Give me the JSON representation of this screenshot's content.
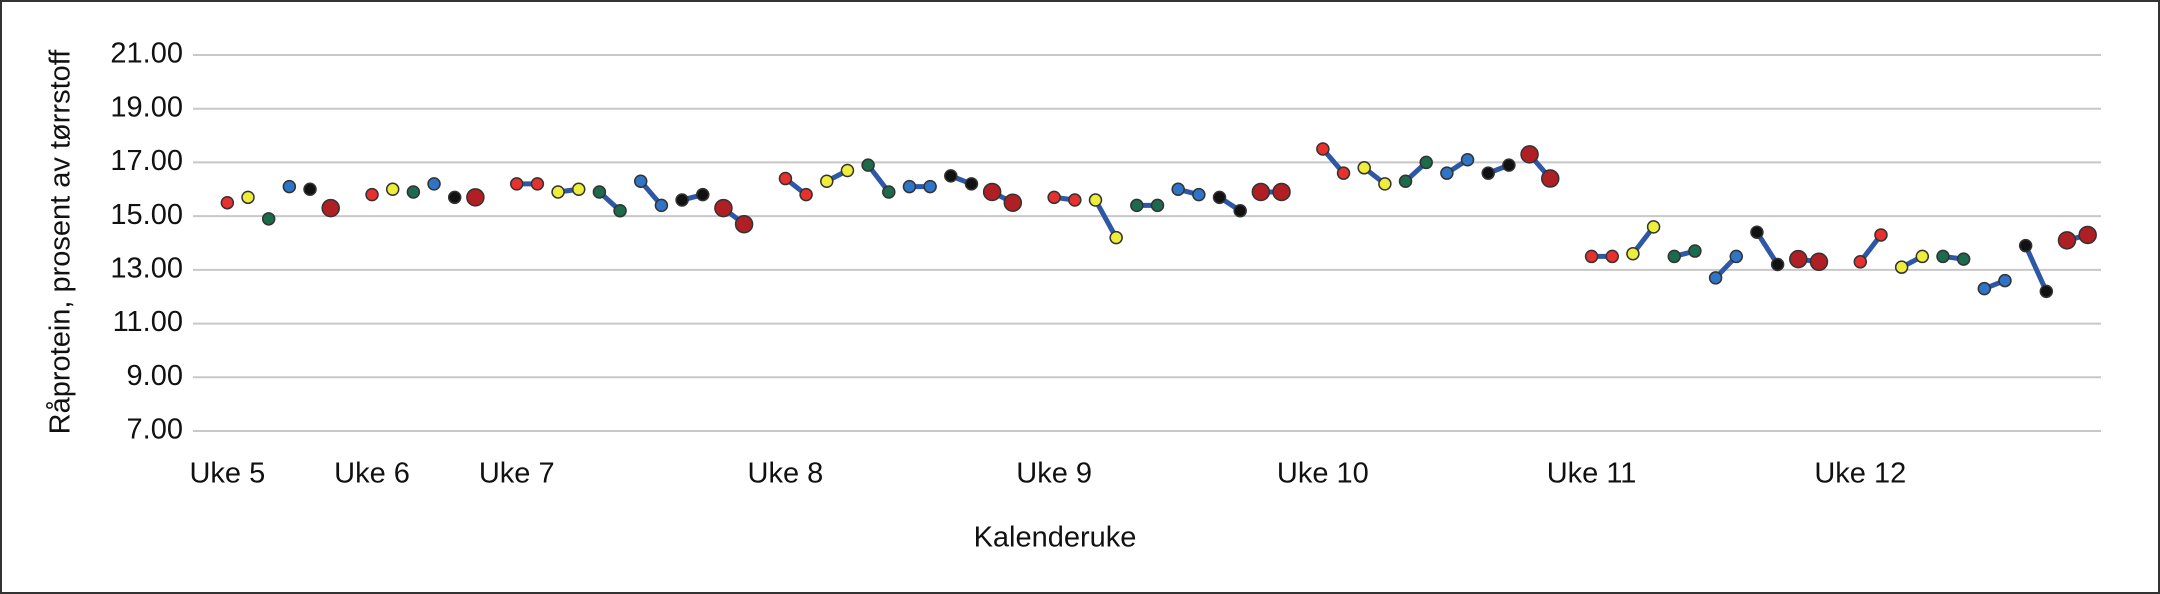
{
  "chart_data": {
    "type": "line",
    "xlabel": "Kalenderuke",
    "ylabel": "Råprotein, prosent av tørrstoff",
    "categories": [
      "Uke 5",
      null,
      null,
      null,
      null,
      null,
      null,
      "Uke 6",
      null,
      null,
      null,
      null,
      null,
      null,
      "Uke 7",
      null,
      null,
      null,
      null,
      null,
      null,
      null,
      null,
      null,
      null,
      null,
      null,
      "Uke 8",
      null,
      null,
      null,
      null,
      null,
      null,
      null,
      null,
      null,
      null,
      null,
      null,
      "Uke 9",
      null,
      null,
      null,
      null,
      null,
      null,
      null,
      null,
      null,
      null,
      null,
      null,
      "Uke 10",
      null,
      null,
      null,
      null,
      null,
      null,
      null,
      null,
      null,
      null,
      null,
      null,
      "Uke 11",
      null,
      null,
      null,
      null,
      null,
      null,
      null,
      null,
      null,
      null,
      null,
      null,
      "Uke 12",
      null,
      null,
      null,
      null,
      null,
      null,
      null,
      null,
      null,
      null,
      null
    ],
    "line_color": "#2e58a6",
    "series": [
      {
        "color": "#e8312f",
        "values": [
          15.5,
          null,
          null,
          null,
          null,
          null,
          null,
          15.8,
          null,
          null,
          null,
          null,
          null,
          null,
          16.2,
          16.2,
          null,
          null,
          null,
          null,
          null,
          null,
          null,
          null,
          null,
          null,
          null,
          16.4,
          15.8,
          null,
          null,
          null,
          null,
          null,
          null,
          null,
          null,
          null,
          null,
          null,
          15.7,
          15.6,
          null,
          null,
          null,
          null,
          null,
          null,
          null,
          null,
          null,
          null,
          null,
          17.5,
          16.6,
          null,
          null,
          null,
          null,
          null,
          null,
          null,
          null,
          null,
          null,
          null,
          13.5,
          13.5,
          null,
          null,
          null,
          null,
          null,
          null,
          null,
          null,
          null,
          null,
          null,
          13.3,
          14.3,
          null,
          null,
          null,
          null,
          null,
          null,
          null,
          null,
          null,
          null
        ]
      },
      {
        "color": "#eeee3a",
        "values": [
          null,
          15.7,
          null,
          null,
          null,
          null,
          null,
          null,
          16.0,
          null,
          null,
          null,
          null,
          null,
          null,
          null,
          15.9,
          16.0,
          null,
          null,
          null,
          null,
          null,
          null,
          null,
          null,
          null,
          null,
          null,
          16.3,
          16.7,
          null,
          null,
          null,
          null,
          null,
          null,
          null,
          null,
          null,
          null,
          null,
          15.6,
          14.2,
          null,
          null,
          null,
          null,
          null,
          null,
          null,
          null,
          null,
          null,
          null,
          16.8,
          16.2,
          null,
          null,
          null,
          null,
          null,
          null,
          null,
          null,
          null,
          null,
          null,
          13.6,
          14.6,
          null,
          null,
          null,
          null,
          null,
          null,
          null,
          null,
          null,
          null,
          null,
          13.1,
          13.5,
          null,
          null,
          null,
          null,
          null,
          null,
          null,
          null
        ]
      },
      {
        "color": "#1b6b4c",
        "values": [
          null,
          null,
          14.9,
          null,
          null,
          null,
          null,
          null,
          null,
          15.9,
          null,
          null,
          null,
          null,
          null,
          null,
          null,
          null,
          15.9,
          15.2,
          null,
          null,
          null,
          null,
          null,
          null,
          null,
          null,
          null,
          null,
          null,
          16.9,
          15.9,
          null,
          null,
          null,
          null,
          null,
          null,
          null,
          null,
          null,
          null,
          null,
          15.4,
          15.4,
          null,
          null,
          null,
          null,
          null,
          null,
          null,
          null,
          null,
          null,
          null,
          16.3,
          17.0,
          null,
          null,
          null,
          null,
          null,
          null,
          null,
          null,
          null,
          null,
          null,
          13.5,
          13.7,
          null,
          null,
          null,
          null,
          null,
          null,
          null,
          null,
          null,
          null,
          null,
          13.5,
          13.4,
          null,
          null,
          null,
          null,
          null,
          null
        ]
      },
      {
        "color": "#2e75c8",
        "values": [
          null,
          null,
          null,
          16.1,
          null,
          null,
          null,
          null,
          null,
          null,
          16.2,
          null,
          null,
          null,
          null,
          null,
          null,
          null,
          null,
          null,
          16.3,
          15.4,
          null,
          null,
          null,
          null,
          null,
          null,
          null,
          null,
          null,
          null,
          null,
          16.1,
          16.1,
          null,
          null,
          null,
          null,
          null,
          null,
          null,
          null,
          null,
          null,
          null,
          16.0,
          15.8,
          null,
          null,
          null,
          null,
          null,
          null,
          null,
          null,
          null,
          null,
          null,
          16.6,
          17.1,
          null,
          null,
          null,
          null,
          null,
          null,
          null,
          null,
          null,
          null,
          null,
          12.7,
          13.5,
          null,
          null,
          null,
          null,
          null,
          null,
          null,
          null,
          null,
          null,
          null,
          12.3,
          12.6,
          null,
          null,
          null,
          null
        ]
      },
      {
        "color": "#111111",
        "values": [
          null,
          null,
          null,
          null,
          16.0,
          null,
          null,
          null,
          null,
          null,
          null,
          15.7,
          null,
          null,
          null,
          null,
          null,
          null,
          null,
          null,
          null,
          null,
          15.6,
          15.8,
          null,
          null,
          null,
          null,
          null,
          null,
          null,
          null,
          null,
          null,
          null,
          16.5,
          16.2,
          null,
          null,
          null,
          null,
          null,
          null,
          null,
          null,
          null,
          null,
          null,
          15.7,
          15.2,
          null,
          null,
          null,
          null,
          null,
          null,
          null,
          null,
          null,
          null,
          null,
          16.6,
          16.9,
          null,
          null,
          null,
          null,
          null,
          null,
          null,
          null,
          null,
          null,
          null,
          14.4,
          13.2,
          null,
          null,
          null,
          null,
          null,
          null,
          null,
          null,
          null,
          null,
          null,
          13.9,
          12.2,
          null,
          null
        ]
      },
      {
        "color": "#b01f24",
        "values": [
          null,
          null,
          null,
          null,
          null,
          15.3,
          null,
          null,
          null,
          null,
          null,
          null,
          15.7,
          null,
          null,
          null,
          null,
          null,
          null,
          null,
          null,
          null,
          null,
          null,
          15.3,
          14.7,
          null,
          null,
          null,
          null,
          null,
          null,
          null,
          null,
          null,
          null,
          null,
          15.9,
          15.5,
          null,
          null,
          null,
          null,
          null,
          null,
          null,
          null,
          null,
          null,
          null,
          15.9,
          15.9,
          null,
          null,
          null,
          null,
          null,
          null,
          null,
          null,
          null,
          null,
          null,
          17.3,
          16.4,
          null,
          null,
          null,
          null,
          null,
          null,
          null,
          null,
          null,
          null,
          null,
          13.4,
          13.3,
          null,
          null,
          null,
          null,
          null,
          null,
          null,
          null,
          null,
          null,
          null,
          14.1,
          14.3
        ]
      }
    ],
    "ylim": [
      7,
      21
    ],
    "yticks": [
      {
        "value": 7,
        "label": "7.00"
      },
      {
        "value": 9,
        "label": "9.00"
      },
      {
        "value": 11,
        "label": "11.00"
      },
      {
        "value": 13,
        "label": "13.00"
      },
      {
        "value": 15,
        "label": "15.00"
      },
      {
        "value": 17,
        "label": "17.00"
      },
      {
        "value": 19,
        "label": "19.00"
      },
      {
        "value": 21,
        "label": "21.00"
      }
    ],
    "grid": true
  }
}
